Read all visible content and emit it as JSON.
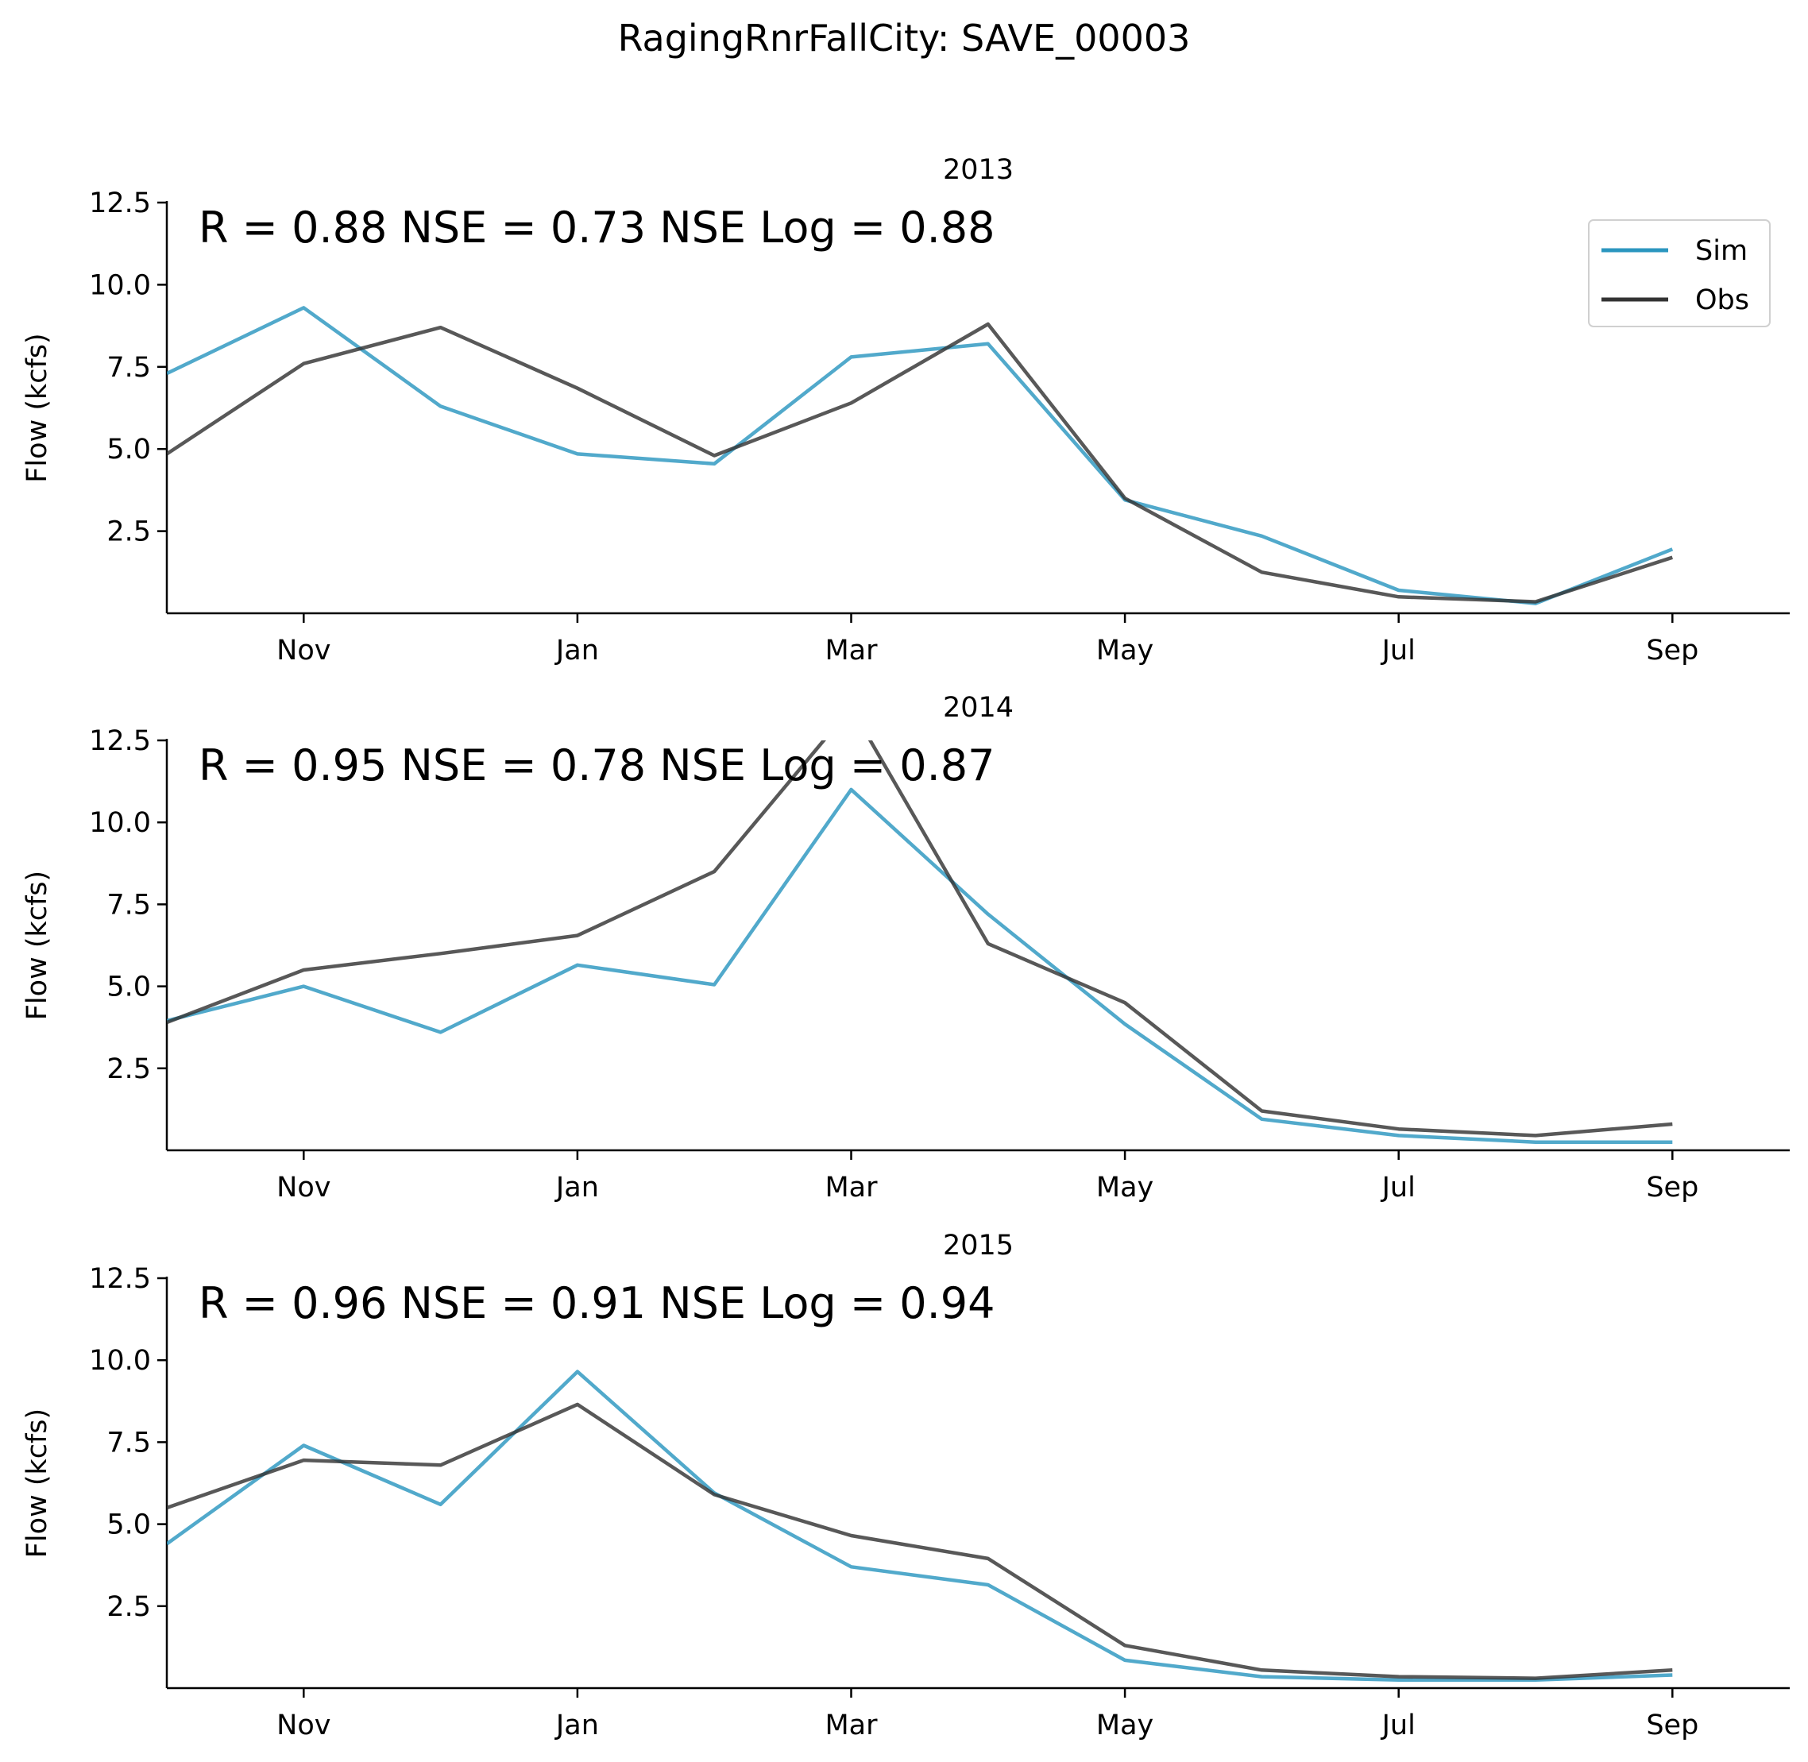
{
  "figure_title": "RagingRnrFallCity: SAVE_00003",
  "colors": {
    "sim": "#2b96bf",
    "obs": "#333333"
  },
  "legend": {
    "sim": "Sim",
    "obs": "Obs",
    "placement": "upper-right of first panel"
  },
  "chart_data": [
    {
      "type": "line",
      "title": "2013",
      "stats": "R = 0.88  NSE = 0.73  NSE Log = 0.88",
      "ylabel": "Flow (kcfs)",
      "xlabel": "",
      "xtick_labels": [
        "Nov",
        "Jan",
        "Mar",
        "May",
        "Jul",
        "Sep"
      ],
      "ytick_labels": [
        "2.5",
        "5.0",
        "7.5",
        "10.0",
        "12.5"
      ],
      "yticks": [
        2.5,
        5.0,
        7.5,
        10.0,
        12.5
      ],
      "ylim": [
        0,
        12.5
      ],
      "x": [
        "Oct",
        "Nov",
        "Dec",
        "Jan",
        "Feb",
        "Mar",
        "Apr",
        "May",
        "Jun",
        "Jul",
        "Aug",
        "Sep"
      ],
      "series": [
        {
          "name": "Sim",
          "values": [
            7.3,
            9.3,
            6.3,
            4.85,
            4.55,
            7.8,
            8.2,
            3.45,
            2.35,
            0.7,
            0.3,
            1.95
          ]
        },
        {
          "name": "Obs",
          "values": [
            4.85,
            7.6,
            8.7,
            6.85,
            4.8,
            6.4,
            8.8,
            3.5,
            1.25,
            0.5,
            0.35,
            1.7
          ]
        }
      ]
    },
    {
      "type": "line",
      "title": "2014",
      "stats": "R = 0.95  NSE = 0.78  NSE Log = 0.87",
      "ylabel": "Flow (kcfs)",
      "xlabel": "",
      "xtick_labels": [
        "Nov",
        "Jan",
        "Mar",
        "May",
        "Jul",
        "Sep"
      ],
      "ytick_labels": [
        "2.5",
        "5.0",
        "7.5",
        "10.0",
        "12.5"
      ],
      "yticks": [
        2.5,
        5.0,
        7.5,
        10.0,
        12.5
      ],
      "ylim": [
        0,
        12.5
      ],
      "x": [
        "Oct",
        "Nov",
        "Dec",
        "Jan",
        "Feb",
        "Mar",
        "Apr",
        "May",
        "Jun",
        "Jul",
        "Aug",
        "Sep"
      ],
      "series": [
        {
          "name": "Sim",
          "values": [
            3.95,
            5.0,
            3.6,
            5.65,
            5.05,
            11.0,
            7.2,
            3.85,
            0.95,
            0.45,
            0.25,
            0.25
          ]
        },
        {
          "name": "Obs",
          "values": [
            3.9,
            5.5,
            6.0,
            6.55,
            8.5,
            13.5,
            6.3,
            4.5,
            1.2,
            0.65,
            0.45,
            0.8
          ]
        }
      ]
    },
    {
      "type": "line",
      "title": "2015",
      "stats": "R = 0.96  NSE = 0.91  NSE Log = 0.94",
      "ylabel": "Flow (kcfs)",
      "xlabel": "",
      "xtick_labels": [
        "Nov",
        "Jan",
        "Mar",
        "May",
        "Jul",
        "Sep"
      ],
      "ytick_labels": [
        "2.5",
        "5.0",
        "7.5",
        "10.0",
        "12.5"
      ],
      "yticks": [
        2.5,
        5.0,
        7.5,
        10.0,
        12.5
      ],
      "ylim": [
        0,
        12.5
      ],
      "x": [
        "Oct",
        "Nov",
        "Dec",
        "Jan",
        "Feb",
        "Mar",
        "Apr",
        "May",
        "Jun",
        "Jul",
        "Aug",
        "Sep"
      ],
      "series": [
        {
          "name": "Sim",
          "values": [
            4.4,
            7.4,
            5.6,
            9.65,
            5.95,
            3.7,
            3.15,
            0.85,
            0.35,
            0.25,
            0.25,
            0.4
          ]
        },
        {
          "name": "Obs",
          "values": [
            5.5,
            6.95,
            6.8,
            8.65,
            5.9,
            4.65,
            3.95,
            1.3,
            0.55,
            0.35,
            0.3,
            0.55
          ]
        }
      ]
    }
  ]
}
